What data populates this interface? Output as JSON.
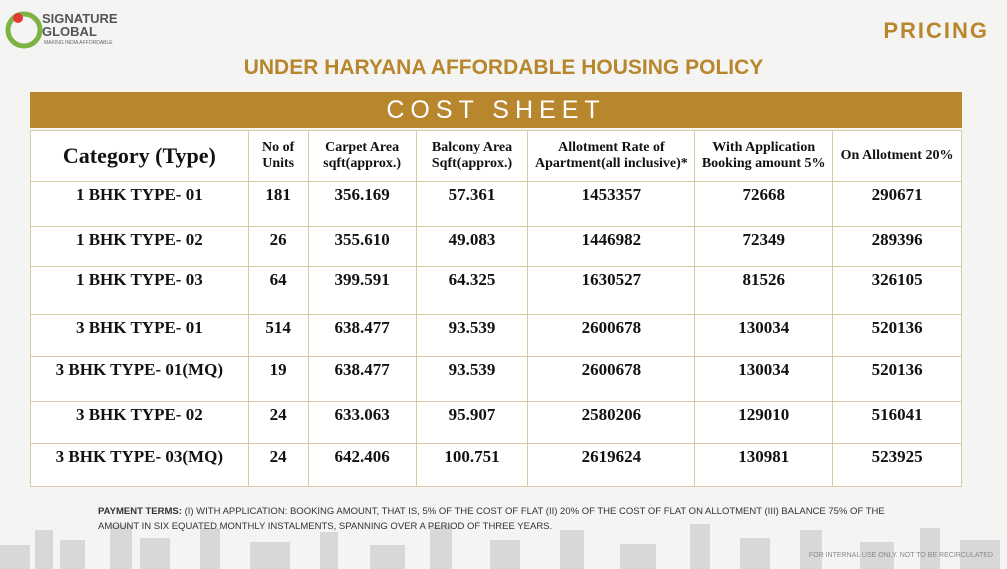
{
  "header": {
    "brand": "SIGNATURE GLOBAL",
    "tagline": "MAKING INDIA AFFORDABLE",
    "section": "PRICING"
  },
  "title": "UNDER HARYANA AFFORDABLE HOUSING POLICY",
  "subtitle": "COST SHEET",
  "table": {
    "columns": [
      "Category (Type)",
      "No of Units",
      "Carpet Area sqft(approx.)",
      "Balcony Area Sqft(approx.)",
      "Allotment Rate of Apartment(all inclusive)*",
      "With Application Booking amount 5%",
      "On Allotment 20%"
    ],
    "rows": [
      [
        "1 BHK TYPE- 01",
        "181",
        "356.169",
        "57.361",
        "1453357",
        "72668",
        "290671"
      ],
      [
        "1 BHK TYPE- 02",
        "26",
        "355.610",
        "49.083",
        "1446982",
        "72349",
        "289396"
      ],
      [
        "1 BHK TYPE- 03",
        "64",
        "399.591",
        "64.325",
        "1630527",
        "81526",
        "326105"
      ],
      [
        "3 BHK TYPE- 01",
        "514",
        "638.477",
        "93.539",
        "2600678",
        "130034",
        "520136"
      ],
      [
        "3 BHK TYPE- 01(MQ)",
        "19",
        "638.477",
        "93.539",
        "2600678",
        "130034",
        "520136"
      ],
      [
        "3 BHK TYPE- 02",
        "24",
        "633.063",
        "95.907",
        "2580206",
        "129010",
        "516041"
      ],
      [
        "3 BHK TYPE- 03(MQ)",
        "24",
        "642.406",
        "100.751",
        "2619624",
        "130981",
        "523925"
      ]
    ]
  },
  "payment_terms_label": "PAYMENT TERMS:",
  "payment_terms": "(I) WITH APPLICATION: BOOKING AMOUNT, THAT IS, 5% OF THE COST OF FLAT (II) 20% OF THE COST OF FLAT ON ALLOTMENT (III) BALANCE 75% OF THE AMOUNT IN SIX EQUATED MONTHLY INSTALMENTS, SPANNING OVER A PERIOD OF THREE YEARS.",
  "footer": "FOR INTERNAL USE ONLY. NOT TO BE RECIRCULATED"
}
